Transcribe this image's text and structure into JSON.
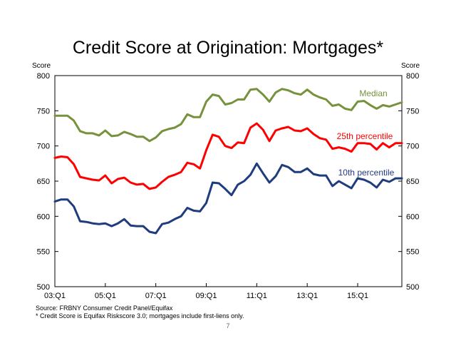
{
  "chart_data": {
    "type": "line",
    "title": "Credit Score at Origination: Mortgages*",
    "ylabel_left": "Score",
    "ylabel_right": "Score",
    "ylim": [
      500,
      800
    ],
    "yticks": [
      500,
      550,
      600,
      650,
      700,
      750,
      800
    ],
    "xticks": [
      "03:Q1",
      "05:Q1",
      "07:Q1",
      "09:Q1",
      "11:Q1",
      "13:Q1",
      "15:Q1"
    ],
    "x": [
      "2003Q1",
      "2003Q2",
      "2003Q3",
      "2003Q4",
      "2004Q1",
      "2004Q2",
      "2004Q3",
      "2004Q4",
      "2005Q1",
      "2005Q2",
      "2005Q3",
      "2005Q4",
      "2006Q1",
      "2006Q2",
      "2006Q3",
      "2006Q4",
      "2007Q1",
      "2007Q2",
      "2007Q3",
      "2007Q4",
      "2008Q1",
      "2008Q2",
      "2008Q3",
      "2008Q4",
      "2009Q1",
      "2009Q2",
      "2009Q3",
      "2009Q4",
      "2010Q1",
      "2010Q2",
      "2010Q3",
      "2010Q4",
      "2011Q1",
      "2011Q2",
      "2011Q3",
      "2011Q4",
      "2012Q1",
      "2012Q2",
      "2012Q3",
      "2012Q4",
      "2013Q1",
      "2013Q2",
      "2013Q3",
      "2013Q4",
      "2014Q1",
      "2014Q2",
      "2014Q3",
      "2014Q4",
      "2015Q1",
      "2015Q2",
      "2015Q3",
      "2015Q4",
      "2016Q1",
      "2016Q2",
      "2016Q3",
      "2016Q4"
    ],
    "series": [
      {
        "name": "Median",
        "color": "#76923c",
        "values": [
          743,
          743,
          743,
          736,
          721,
          718,
          718,
          715,
          722,
          714,
          715,
          720,
          717,
          713,
          713,
          707,
          712,
          721,
          724,
          726,
          731,
          745,
          741,
          741,
          763,
          773,
          771,
          759,
          761,
          766,
          766,
          780,
          781,
          773,
          763,
          776,
          781,
          779,
          775,
          773,
          780,
          773,
          769,
          766,
          757,
          759,
          753,
          751,
          763,
          764,
          758,
          753,
          758,
          756,
          759,
          762
        ]
      },
      {
        "name": "25th percentile",
        "color": "#ff0000",
        "values": [
          683,
          685,
          684,
          674,
          656,
          654,
          652,
          651,
          658,
          647,
          653,
          655,
          648,
          645,
          646,
          639,
          641,
          649,
          656,
          659,
          663,
          676,
          674,
          668,
          694,
          716,
          713,
          700,
          697,
          705,
          704,
          726,
          732,
          723,
          707,
          722,
          725,
          727,
          722,
          721,
          725,
          717,
          711,
          709,
          696,
          698,
          696,
          692,
          704,
          704,
          703,
          695,
          704,
          698,
          704,
          704
        ]
      },
      {
        "name": "10th percentile",
        "color": "#1f3c7e",
        "values": [
          621,
          624,
          624,
          614,
          593,
          592,
          590,
          589,
          590,
          586,
          590,
          596,
          587,
          586,
          586,
          578,
          576,
          589,
          591,
          596,
          600,
          612,
          608,
          607,
          619,
          648,
          647,
          639,
          630,
          645,
          650,
          659,
          675,
          661,
          648,
          657,
          673,
          670,
          663,
          663,
          668,
          660,
          658,
          658,
          643,
          650,
          645,
          640,
          654,
          652,
          648,
          641,
          652,
          649,
          654,
          654
        ]
      }
    ],
    "annotations": [
      "Source: FRBNY Consumer Credit Panel/Equifax",
      "* Credit Score is Equifax Riskscore 3.0; mortgages include first-liens only."
    ],
    "page_number": "7",
    "grid": false,
    "legend": "inline labels"
  }
}
